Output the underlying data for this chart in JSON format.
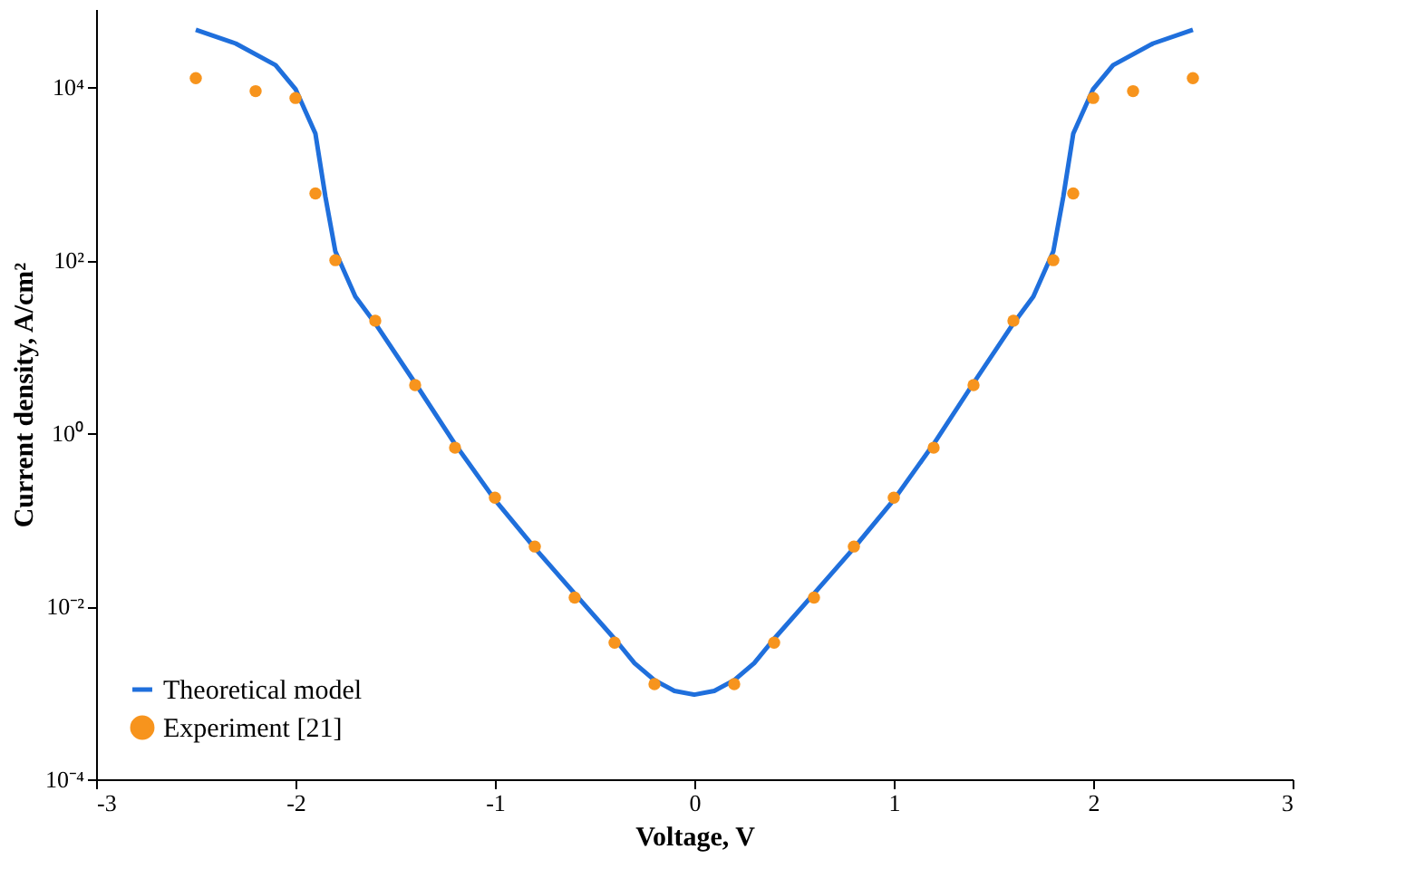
{
  "chart_data": {
    "type": "line",
    "xlabel": "Voltage, V",
    "ylabel": "Current density, A/cm²",
    "xlim": [
      -3,
      3
    ],
    "xticks": [
      -3,
      -2,
      -1,
      0,
      1,
      2,
      3
    ],
    "ylim": [
      0.0001,
      80000
    ],
    "log": "y",
    "yticks": [
      {
        "value": 0.0001,
        "label": "10⁻⁴"
      },
      {
        "value": 0.01,
        "label": "10⁻²"
      },
      {
        "value": 1,
        "label": "10⁰"
      },
      {
        "value": 100,
        "label": "10²"
      },
      {
        "value": 10000,
        "label": "10⁴"
      }
    ],
    "grid": false,
    "legend": "bottom left",
    "series": [
      {
        "name": "Theoretical model",
        "color": "#1f6fdc",
        "marker": "none",
        "line_style": "solid",
        "x": [
          -2.5,
          -2.3,
          -2.1,
          -2.0,
          -1.9,
          -1.85,
          -1.8,
          -1.7,
          -1.6,
          -1.4,
          -1.2,
          -1.0,
          -0.8,
          -0.6,
          -0.4,
          -0.3,
          -0.2,
          -0.1,
          0,
          0.1,
          0.2,
          0.3,
          0.4,
          0.6,
          0.8,
          1.0,
          1.2,
          1.4,
          1.6,
          1.7,
          1.8,
          1.85,
          1.9,
          2.0,
          2.1,
          2.3,
          2.5
        ],
        "values": [
          46000,
          32000,
          18000,
          9500,
          2900,
          540,
          126,
          38,
          18.6,
          3.8,
          0.75,
          0.17,
          0.047,
          0.014,
          0.0042,
          0.0022,
          0.0014,
          0.00105,
          0.00095,
          0.00105,
          0.0014,
          0.0022,
          0.0042,
          0.014,
          0.047,
          0.17,
          0.75,
          3.8,
          18.6,
          38,
          126,
          540,
          2900,
          9500,
          18000,
          32000,
          46000
        ]
      },
      {
        "name": "Experiment [21]",
        "type": "scatter",
        "color": "#f7941d",
        "marker": "circle",
        "x": [
          -2.5,
          -2.2,
          -2.0,
          -1.9,
          -1.8,
          -1.6,
          -1.4,
          -1.2,
          -1.0,
          -0.8,
          -0.6,
          -0.4,
          -0.2,
          0.2,
          0.4,
          0.6,
          0.8,
          1.0,
          1.2,
          1.4,
          1.6,
          1.8,
          1.9,
          2.0,
          2.2,
          2.5
        ],
        "values": [
          12700,
          9000,
          7500,
          590,
          100,
          20,
          3.6,
          0.68,
          0.18,
          0.049,
          0.0126,
          0.0038,
          0.00126,
          0.00126,
          0.0038,
          0.0126,
          0.049,
          0.18,
          0.68,
          3.6,
          20,
          100,
          590,
          7500,
          9000,
          12700
        ]
      }
    ]
  }
}
